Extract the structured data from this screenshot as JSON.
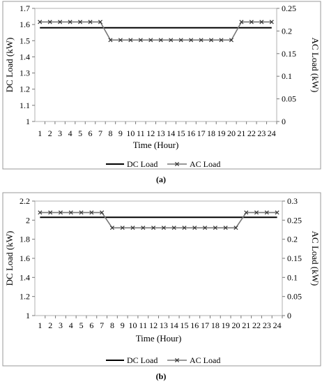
{
  "colors": {
    "dc_line": "#000000",
    "ac_line": "#777777",
    "marker": "#333333",
    "frame": "#999999"
  },
  "chart_data": [
    {
      "id": "a",
      "type": "line",
      "panel_label": "(a)",
      "xlabel": "Time (Hour)",
      "ylabel_left": "DC Load (kW)",
      "ylabel_right": "AC Load (kW)",
      "categories": [
        "1",
        "2",
        "3",
        "4",
        "5",
        "6",
        "7",
        "8",
        "9",
        "10",
        "11",
        "12",
        "13",
        "14",
        "15",
        "16",
        "17",
        "18",
        "19",
        "20",
        "21",
        "22",
        "23",
        "24"
      ],
      "y_left": {
        "min": 1,
        "max": 1.7,
        "ticks": [
          "1",
          "1.1",
          "1.2",
          "1.3",
          "1.4",
          "1.5",
          "1.6",
          "1.7"
        ]
      },
      "y_right": {
        "min": 0,
        "max": 0.25,
        "ticks": [
          "0",
          "0.05",
          "0.1",
          "0.15",
          "0.2",
          "0.25"
        ]
      },
      "series": [
        {
          "name": "DC Load",
          "axis": "left",
          "marker": "none",
          "values": [
            1.58,
            1.58,
            1.58,
            1.58,
            1.58,
            1.58,
            1.58,
            1.58,
            1.58,
            1.58,
            1.58,
            1.58,
            1.58,
            1.58,
            1.58,
            1.58,
            1.58,
            1.58,
            1.58,
            1.58,
            1.58,
            1.58,
            1.58,
            1.58
          ]
        },
        {
          "name": "AC Load",
          "axis": "right",
          "marker": "x",
          "values": [
            0.22,
            0.22,
            0.22,
            0.22,
            0.22,
            0.22,
            0.22,
            0.18,
            0.18,
            0.18,
            0.18,
            0.18,
            0.18,
            0.18,
            0.18,
            0.18,
            0.18,
            0.18,
            0.18,
            0.18,
            0.22,
            0.22,
            0.22,
            0.22
          ]
        }
      ]
    },
    {
      "id": "b",
      "type": "line",
      "panel_label": "(b)",
      "xlabel": "Time (Hour)",
      "ylabel_left": "DC Load (kW)",
      "ylabel_right": "AC Load (kW)",
      "categories": [
        "1",
        "2",
        "3",
        "4",
        "5",
        "6",
        "7",
        "8",
        "9",
        "10",
        "11",
        "12",
        "13",
        "14",
        "15",
        "16",
        "17",
        "18",
        "19",
        "20",
        "21",
        "22",
        "23",
        "24"
      ],
      "y_left": {
        "min": 1,
        "max": 2.2,
        "ticks": [
          "1",
          "1.2",
          "1.4",
          "1.6",
          "1.8",
          "2",
          "2.2"
        ]
      },
      "y_right": {
        "min": 0,
        "max": 0.3,
        "ticks": [
          "0",
          "0.05",
          "0.1",
          "0.15",
          "0.2",
          "0.25",
          "0.3"
        ]
      },
      "series": [
        {
          "name": "DC Load",
          "axis": "left",
          "marker": "none",
          "values": [
            2.03,
            2.03,
            2.03,
            2.03,
            2.03,
            2.03,
            2.03,
            2.03,
            2.03,
            2.03,
            2.03,
            2.03,
            2.03,
            2.03,
            2.03,
            2.03,
            2.03,
            2.03,
            2.03,
            2.03,
            2.03,
            2.03,
            2.03,
            2.03
          ]
        },
        {
          "name": "AC Load",
          "axis": "right",
          "marker": "x",
          "values": [
            0.27,
            0.27,
            0.27,
            0.27,
            0.27,
            0.27,
            0.27,
            0.23,
            0.23,
            0.23,
            0.23,
            0.23,
            0.23,
            0.23,
            0.23,
            0.23,
            0.23,
            0.23,
            0.23,
            0.23,
            0.27,
            0.27,
            0.27,
            0.27
          ]
        }
      ]
    }
  ]
}
